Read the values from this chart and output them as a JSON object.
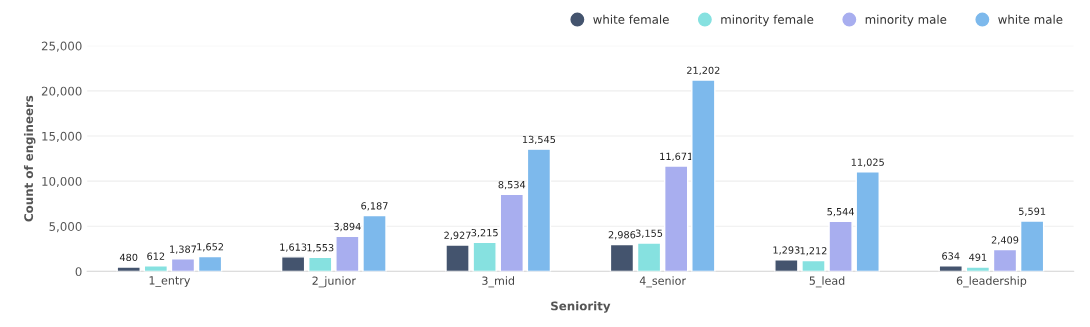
{
  "chart_data": {
    "type": "bar",
    "xlabel": "Seniority",
    "ylabel": "Count of engineers",
    "categories": [
      "1_entry",
      "2_junior",
      "3_mid",
      "4_senior",
      "5_lead",
      "6_leadership"
    ],
    "series": [
      {
        "name": "white female",
        "color": "#44546e",
        "values": [
          480,
          1613,
          2927,
          2986,
          1293,
          634
        ],
        "value_labels": [
          "480",
          "1,613",
          "2,927",
          "2,986",
          "1,293",
          "634"
        ]
      },
      {
        "name": "minority female",
        "color": "#86e1e0",
        "values": [
          612,
          1553,
          3215,
          3155,
          1212,
          491
        ],
        "value_labels": [
          "612",
          "1,553",
          "3,215",
          "3,155",
          "1,212",
          "491"
        ]
      },
      {
        "name": "minority male",
        "color": "#a8aeef",
        "values": [
          1387,
          3894,
          8534,
          11671,
          5544,
          2409
        ],
        "value_labels": [
          "1,387",
          "3,894",
          "8,534",
          "11,671",
          "5,544",
          "2,409"
        ]
      },
      {
        "name": "white male",
        "color": "#7db9ec",
        "values": [
          1652,
          6187,
          13545,
          21202,
          11025,
          5591
        ],
        "value_labels": [
          "1,652",
          "6,187",
          "13,545",
          "21,202",
          "11,025",
          "5,591"
        ]
      }
    ],
    "ylim": [
      0,
      25000
    ],
    "yticks": [
      0,
      {
        "value": 5000,
        "label": "5,000"
      },
      {
        "value": 10000,
        "label": "10,000"
      },
      {
        "value": 15000,
        "label": "15,000"
      },
      {
        "value": 20000,
        "label": "20,000"
      },
      {
        "value": 25000,
        "label": "25,000"
      }
    ],
    "grid": "y",
    "legend": "top right"
  }
}
